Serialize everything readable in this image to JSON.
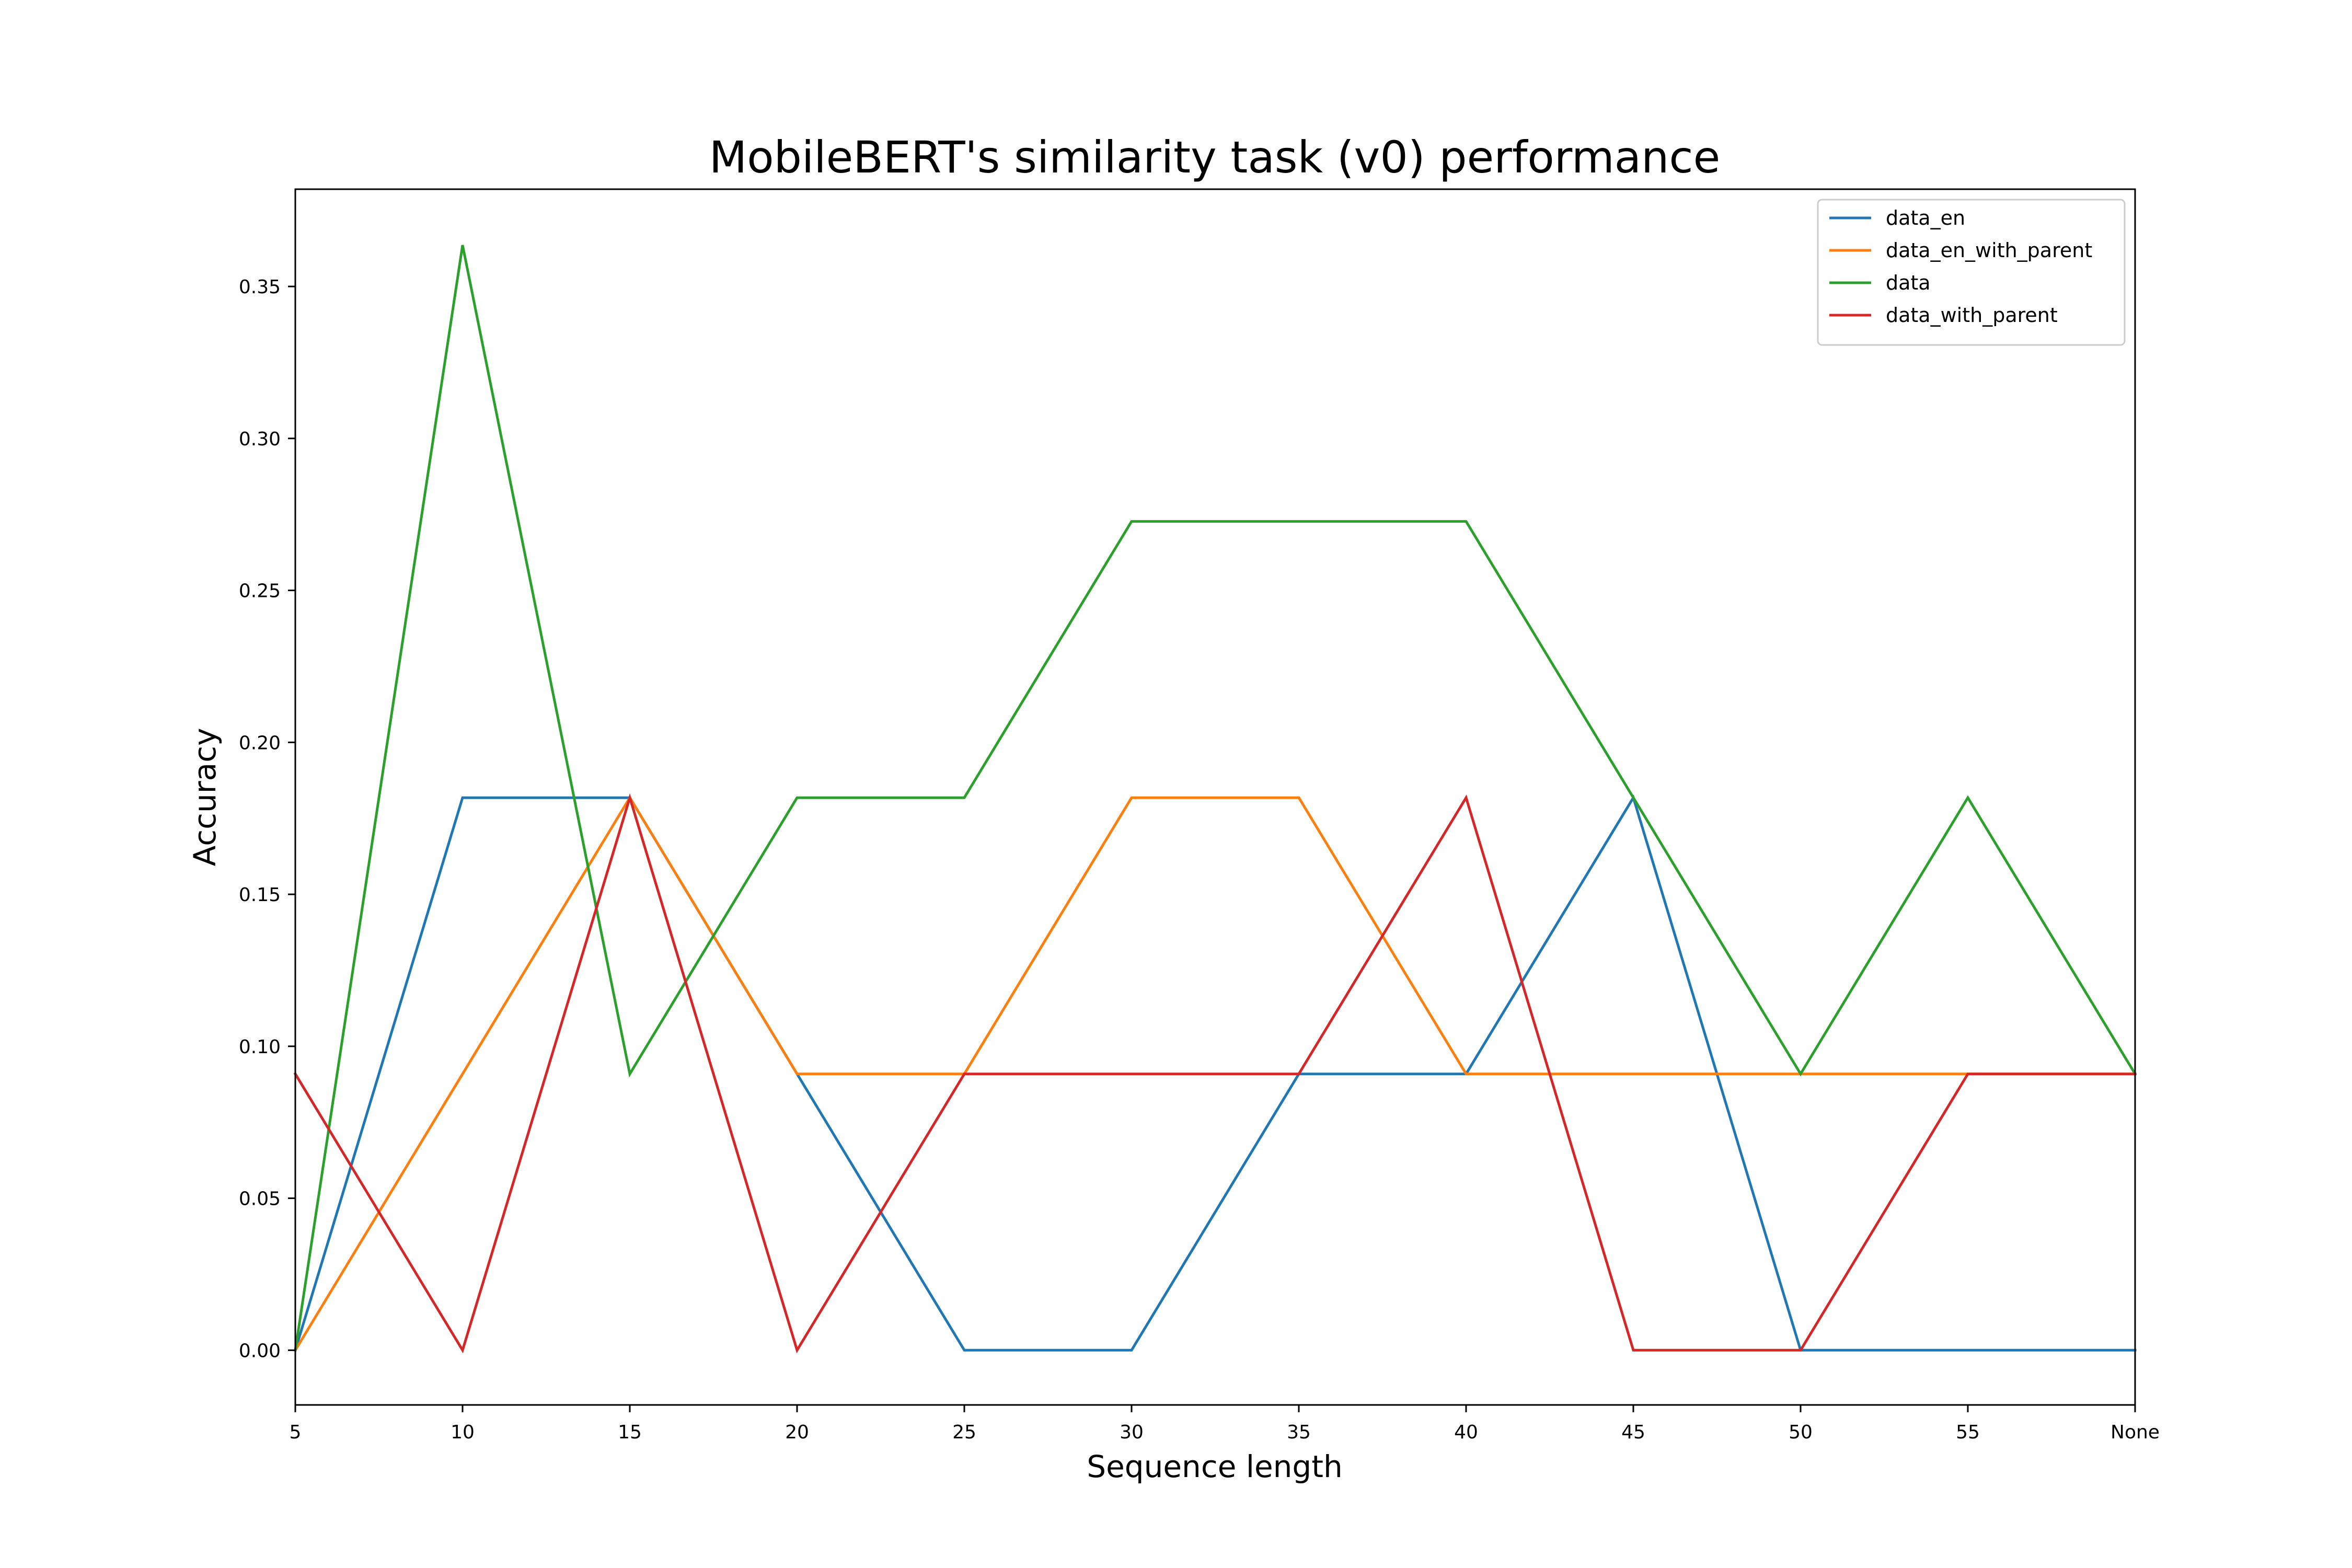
{
  "chart_data": {
    "type": "line",
    "title": "MobileBERT's similarity task (v0) performance",
    "xlabel": "Sequence length",
    "ylabel": "Accuracy",
    "categories": [
      "5",
      "10",
      "15",
      "20",
      "25",
      "30",
      "35",
      "40",
      "45",
      "50",
      "55",
      "None"
    ],
    "ylim": [
      -0.018,
      0.382
    ],
    "yticks": [
      "0.00",
      "0.05",
      "0.10",
      "0.15",
      "0.20",
      "0.25",
      "0.30",
      "0.35"
    ],
    "grid": false,
    "legend_position": "top-right",
    "series": [
      {
        "name": "data_en",
        "color": "#1f77b4",
        "values": [
          0.0,
          0.1818,
          0.1818,
          0.0909,
          0.0,
          0.0,
          0.0909,
          0.0909,
          0.1818,
          0.0,
          0.0,
          0.0
        ]
      },
      {
        "name": "data_en_with_parent",
        "color": "#ff7f0e",
        "values": [
          0.0,
          0.0909,
          0.1818,
          0.0909,
          0.0909,
          0.1818,
          0.1818,
          0.0909,
          0.0909,
          0.0909,
          0.0909,
          0.0909
        ]
      },
      {
        "name": "data",
        "color": "#2ca02c",
        "values": [
          0.0,
          0.3636,
          0.0909,
          0.1818,
          0.1818,
          0.2727,
          0.2727,
          0.2727,
          0.1818,
          0.0909,
          0.1818,
          0.0909
        ]
      },
      {
        "name": "data_with_parent",
        "color": "#d62728",
        "values": [
          0.0909,
          0.0,
          0.1818,
          0.0,
          0.0909,
          0.0909,
          0.0909,
          0.1818,
          0.0,
          0.0,
          0.0909,
          0.0909
        ]
      }
    ]
  }
}
